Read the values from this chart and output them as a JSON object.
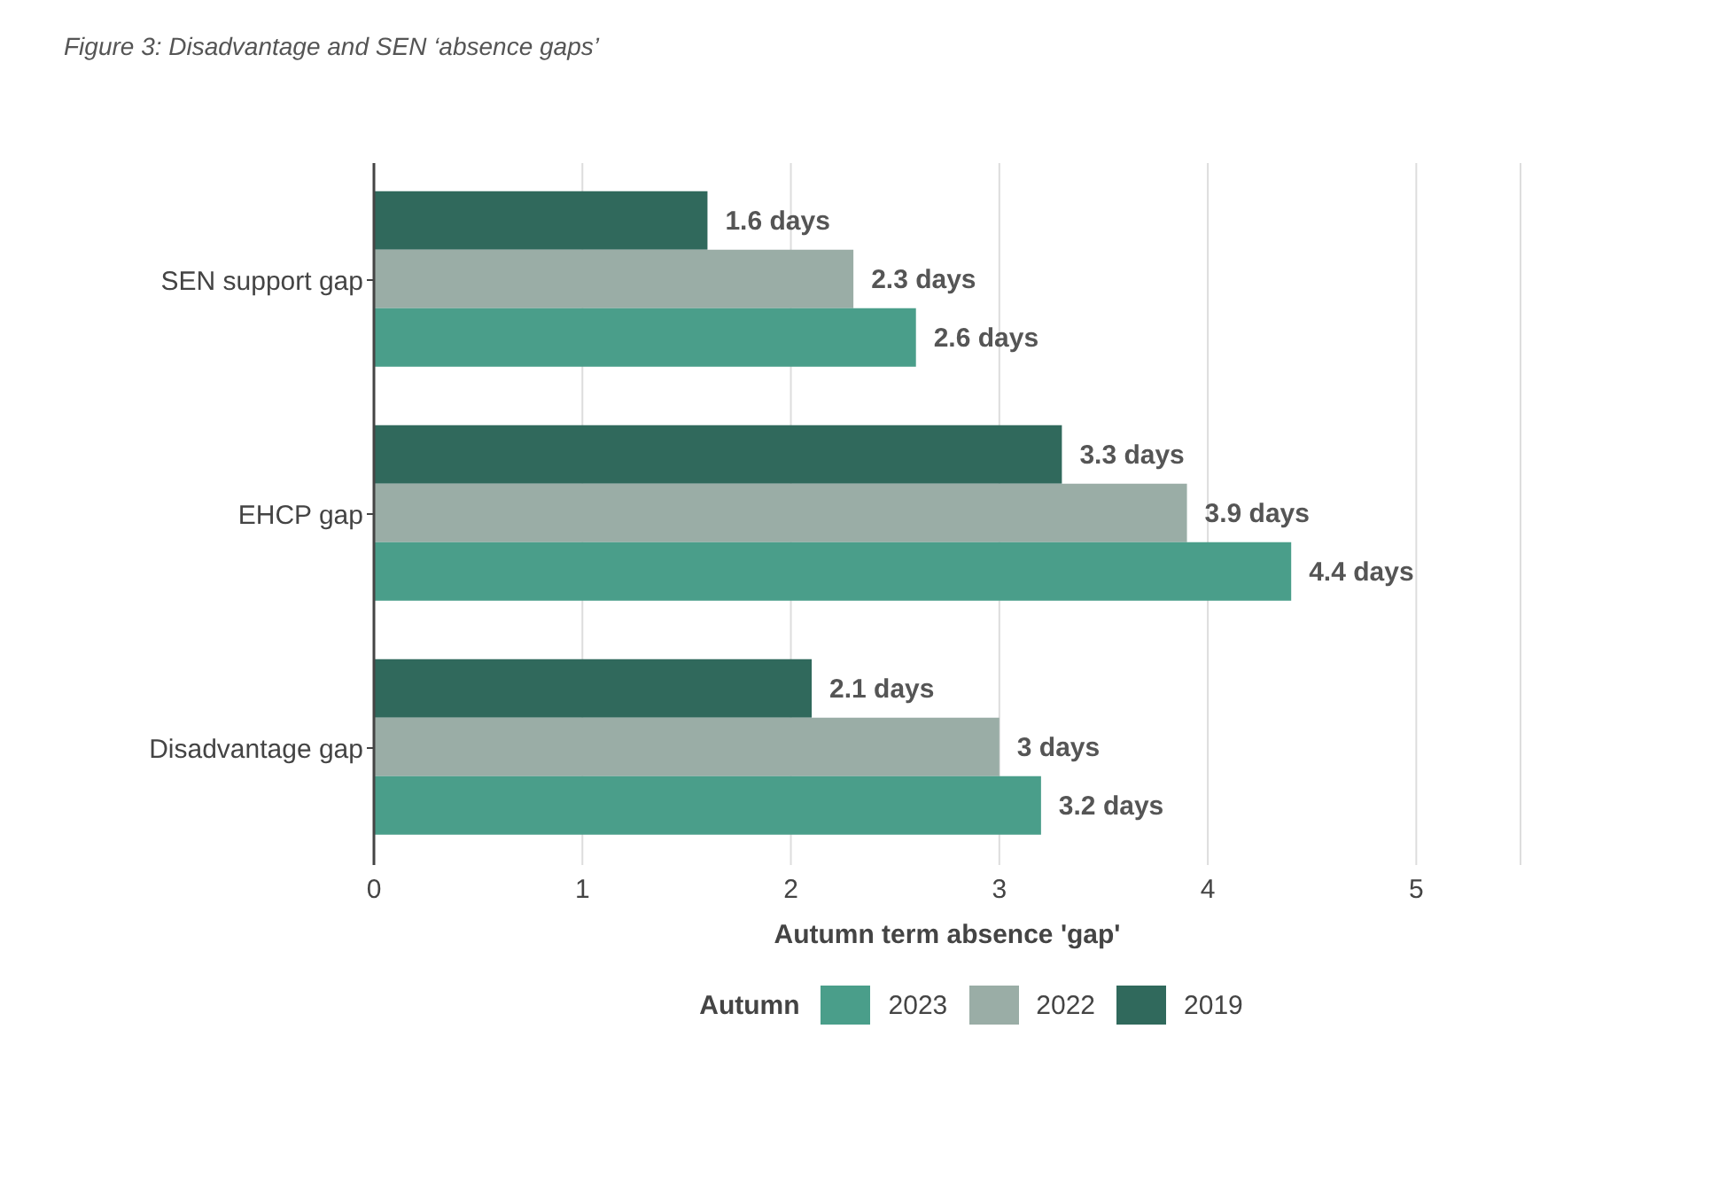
{
  "chart_data": {
    "type": "bar",
    "orientation": "horizontal",
    "title": "Figure 3: Disadvantage and SEN ‘absence gaps’",
    "xlabel": "Autumn term absence   'gap'",
    "legend_title": "Autumn",
    "categories": [
      "SEN support gap",
      "EHCP gap",
      "Disadvantage gap"
    ],
    "series": [
      {
        "name": "2023",
        "color": "#4a9e8a",
        "values": [
          2.6,
          4.4,
          3.2
        ],
        "value_labels": [
          "2.6 days",
          "4.4 days",
          "3.2 days"
        ]
      },
      {
        "name": "2022",
        "color": "#9aada6",
        "values": [
          2.3,
          3.9,
          3
        ],
        "value_labels": [
          "2.3 days",
          "3.9 days",
          "3 days"
        ]
      },
      {
        "name": "2019",
        "color": "#30695c",
        "values": [
          1.6,
          3.3,
          2.1
        ],
        "value_labels": [
          "1.6 days",
          "3.3 days",
          "2.1 days"
        ]
      }
    ],
    "xlim": [
      0,
      5.5
    ],
    "xticks": [
      0,
      1,
      2,
      3,
      4,
      5
    ],
    "grid": "x",
    "legend": "bottom"
  }
}
